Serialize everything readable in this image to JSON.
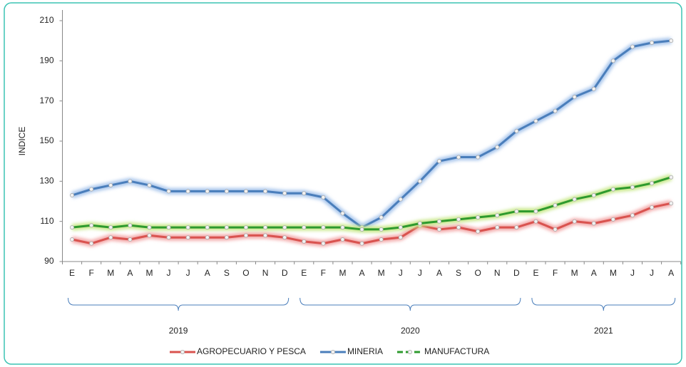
{
  "chart_data": {
    "type": "line",
    "y_label": "INDICE",
    "categories": [
      "E",
      "F",
      "M",
      "A",
      "M",
      "J",
      "J",
      "A",
      "S",
      "O",
      "N",
      "D",
      "E",
      "F",
      "M",
      "A",
      "M",
      "J",
      "J",
      "A",
      "S",
      "O",
      "N",
      "D",
      "E",
      "F",
      "M",
      "A",
      "M",
      "J",
      "J",
      "A"
    ],
    "groups": [
      {
        "label": "2019",
        "size": 12
      },
      {
        "label": "2020",
        "size": 12
      },
      {
        "label": "2021",
        "size": 8
      }
    ],
    "series": [
      {
        "name": "AGROPECUARIO Y PESCA",
        "color": "#d9534f",
        "glow": "#f3a9a9",
        "values": [
          101,
          99,
          102,
          101,
          103,
          102,
          102,
          102,
          102,
          103,
          103,
          102,
          100,
          99,
          101,
          99,
          101,
          102,
          108,
          106,
          107,
          105,
          107,
          107,
          110,
          106,
          110,
          109,
          111,
          113,
          117,
          119
        ]
      },
      {
        "name": "MINERIA",
        "color": "#4a7ebb",
        "glow": "#a9c6ec",
        "values": [
          123,
          126,
          128,
          130,
          128,
          125,
          125,
          125,
          125,
          125,
          125,
          124,
          124,
          122,
          114,
          107,
          112,
          121,
          130,
          140,
          142,
          142,
          147,
          155,
          160,
          165,
          172,
          176,
          190,
          197,
          199,
          200
        ]
      },
      {
        "name": "MANUFACTURA",
        "color": "#2e9a2e",
        "glow": "#c8e88a",
        "values": [
          107,
          108,
          107,
          108,
          107,
          107,
          107,
          107,
          107,
          107,
          107,
          107,
          107,
          107,
          107,
          106,
          106,
          107,
          109,
          110,
          111,
          112,
          113,
          115,
          115,
          118,
          121,
          123,
          126,
          127,
          129,
          132
        ]
      }
    ],
    "ylim": [
      90,
      210
    ],
    "yticks": [
      90,
      110,
      130,
      150,
      170,
      190,
      210
    ]
  }
}
